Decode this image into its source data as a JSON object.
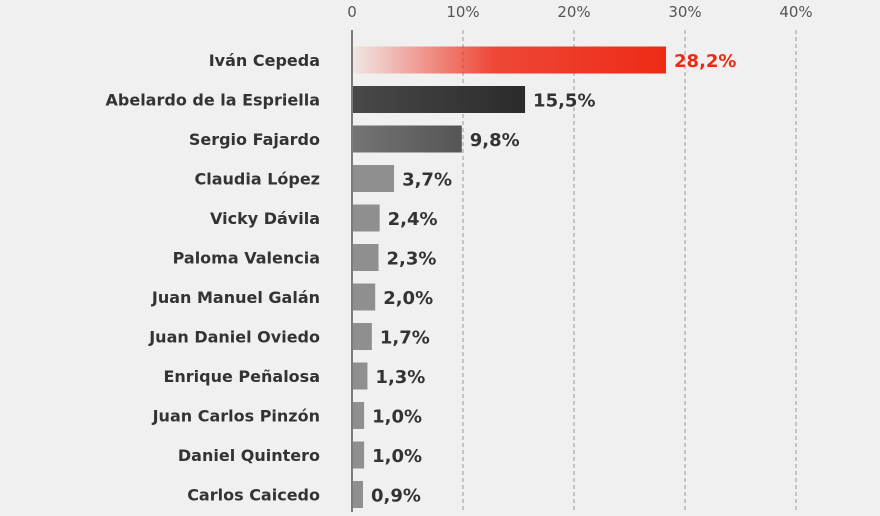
{
  "chart_data": {
    "type": "bar",
    "orientation": "horizontal",
    "title": "",
    "xlabel": "",
    "ylabel": "",
    "xlim": [
      0,
      40
    ],
    "ticks": [
      "0",
      "10%",
      "20%",
      "30%",
      "40%"
    ],
    "tick_values": [
      0,
      10,
      20,
      30,
      40
    ],
    "grid": true,
    "categories": [
      "Iván Cepeda",
      "Abelardo de la Espriella",
      "Sergio Fajardo",
      "Claudia López",
      "Vicky Dávila",
      "Paloma Valencia",
      "Juan Manuel Galán",
      "Juan Daniel Oviedo",
      "Enrique Peñalosa",
      "Juan Carlos Pinzón",
      "Daniel Quintero",
      "Carlos Caicedo"
    ],
    "values": [
      28.2,
      15.5,
      9.8,
      3.7,
      2.4,
      2.3,
      2.0,
      1.7,
      1.3,
      1.0,
      1.0,
      0.9
    ],
    "value_labels": [
      "28,2%",
      "15,5%",
      "9,8%",
      "3,7%",
      "2,4%",
      "2,3%",
      "2,0%",
      "1,7%",
      "1,3%",
      "1,0%",
      "1,0%",
      "0,9%"
    ],
    "colors": {
      "highlight": "#ee2a16",
      "second": "#2b2b2b",
      "third": "#555555",
      "rest": "#8f8f8f",
      "label_highlight": "#ee2a16",
      "label": "#333333",
      "grid": "#9a9a9a"
    }
  }
}
